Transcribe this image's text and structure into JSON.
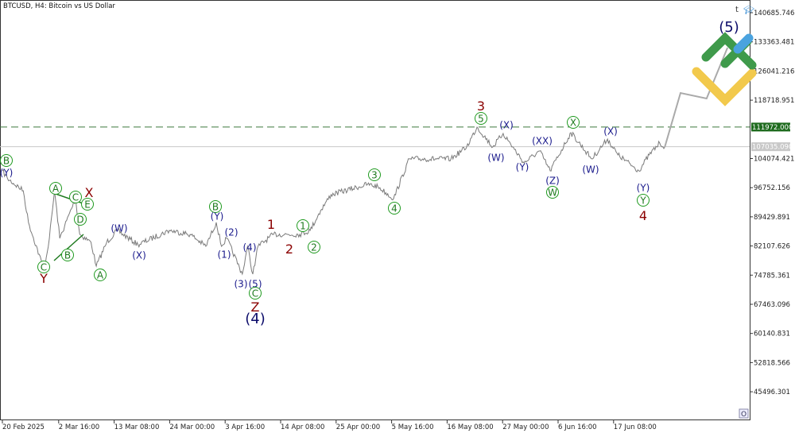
{
  "header": {
    "title": "BTCUSD, H4:  Bitcoin vs US Dollar"
  },
  "colors": {
    "price_line": "#7a7a7a",
    "projection": "#aaaaaa",
    "level_dashed": "#3c7a3c",
    "level_tag_bg": "#1e6b1e",
    "current_tag_bg": "#c8c8c8",
    "wave_navy": "#1a1a8c",
    "wave_red": "#8b0000",
    "wave_green": "#1f7a1f"
  },
  "toolbar": {
    "t_label": "t",
    "hat_icon": "graduation-cap-icon",
    "o_button": "O"
  },
  "chart_data": {
    "type": "line",
    "title": "BTCUSD, H4:  Bitcoin vs US Dollar",
    "grid": false,
    "ylim": [
      41000,
      142000
    ],
    "y_ticks": [
      "140685.746",
      "133363.481",
      "126041.216",
      "118718.951",
      "111972.000",
      "107035.090",
      "104074.421",
      "96752.156",
      "89429.891",
      "82107.626",
      "74785.361",
      "67463.096",
      "60140.831",
      "52818.566",
      "45496.301"
    ],
    "x_ticks": [
      "20 Feb 2025",
      "2 Mar 16:00",
      "13 Mar 08:00",
      "24 Mar 00:00",
      "3 Apr 16:00",
      "14 Apr 08:00",
      "25 Apr 00:00",
      "5 May 16:00",
      "16 May 08:00",
      "27 May 00:00",
      "6 Jun 16:00",
      "17 Jun 08:00"
    ],
    "series": [
      {
        "points": [
          [
            "2025-02-20",
            100981
          ],
          [
            "2025-02-21",
            98986
          ],
          [
            "2025-02-24",
            95994
          ],
          [
            "2025-02-25",
            88013
          ],
          [
            "2025-02-28",
            76042
          ],
          [
            "2025-03-01",
            84022
          ],
          [
            "2025-03-02",
            95994
          ],
          [
            "2025-03-03",
            84022
          ],
          [
            "2025-03-06",
            93998
          ],
          [
            "2025-03-06 20:00",
            85020
          ],
          [
            "2025-03-09",
            83025
          ],
          [
            "2025-03-10",
            77039
          ],
          [
            "2025-03-12",
            83025
          ],
          [
            "2025-03-14",
            86018
          ],
          [
            "2025-03-18",
            82426
          ],
          [
            "2025-03-24",
            86018
          ],
          [
            "2025-03-28",
            85020
          ],
          [
            "2025-03-31",
            82027
          ],
          [
            "2025-04-02",
            88013
          ],
          [
            "2025-04-03",
            82027
          ],
          [
            "2025-04-04",
            84022
          ],
          [
            "2025-04-07",
            75044
          ],
          [
            "2025-04-08",
            82027
          ],
          [
            "2025-04-09",
            75044
          ],
          [
            "2025-04-10",
            82027
          ],
          [
            "2025-04-13",
            85020
          ],
          [
            "2025-04-18",
            85020
          ],
          [
            "2025-04-20",
            86018
          ],
          [
            "2025-04-22",
            91006
          ],
          [
            "2025-04-24",
            94996
          ],
          [
            "2025-05-01",
            97590
          ],
          [
            "2025-05-03",
            97000
          ],
          [
            "2025-05-06",
            93998
          ],
          [
            "2025-05-09",
            103974
          ],
          [
            "2025-05-17",
            103974
          ],
          [
            "2025-05-20",
            106967
          ],
          [
            "2025-05-22",
            111955
          ],
          [
            "2025-05-25",
            106967
          ],
          [
            "2025-05-27",
            110359
          ],
          [
            "2025-05-31",
            102977
          ],
          [
            "2025-06-03",
            105970
          ],
          [
            "2025-06-05",
            100981
          ],
          [
            "2025-06-09",
            110558
          ],
          [
            "2025-06-13",
            103974
          ],
          [
            "2025-06-16",
            108962
          ],
          [
            "2025-06-18",
            104972
          ],
          [
            "2025-06-22",
            100981
          ],
          [
            "2025-06-24",
            104972
          ],
          [
            "2025-06-26",
            107965
          ],
          [
            "2025-06-27",
            107035
          ]
        ]
      },
      {
        "points": [
          [
            "2025-06-27",
            107035
          ],
          [
            "2025-06-30",
            120534
          ],
          [
            "2025-07-05",
            119138
          ],
          [
            "2025-07-09",
            131907
          ]
        ]
      }
    ],
    "levels": {
      "dashed": 111972.0,
      "current": 107035.09
    }
  },
  "waves": [
    {
      "t": "B",
      "c": "grn",
      "circ": true
    },
    {
      "t": "(Y)",
      "c": "navy"
    },
    {
      "t": "A",
      "c": "grn",
      "circ": true
    },
    {
      "t": "C",
      "c": "grn",
      "circ": true
    },
    {
      "t": "X",
      "c": "red"
    },
    {
      "t": "E",
      "c": "grn",
      "circ": true
    },
    {
      "t": "D",
      "c": "grn",
      "circ": true
    },
    {
      "t": "B",
      "c": "grn",
      "circ": true
    },
    {
      "t": "C",
      "c": "grn",
      "circ": true
    },
    {
      "t": "Y",
      "c": "red"
    },
    {
      "t": "A",
      "c": "grn",
      "circ": true
    },
    {
      "t": "(W)",
      "c": "navy"
    },
    {
      "t": "(X)",
      "c": "navy"
    },
    {
      "t": "B",
      "c": "grn",
      "circ": true
    },
    {
      "t": "(Y)",
      "c": "navy"
    },
    {
      "t": "(2)",
      "c": "navy"
    },
    {
      "t": "(1)",
      "c": "navy"
    },
    {
      "t": "(4)",
      "c": "navy"
    },
    {
      "t": "(3)",
      "c": "navy"
    },
    {
      "t": "(5)",
      "c": "navy"
    },
    {
      "t": "C",
      "c": "grn",
      "circ": true
    },
    {
      "t": "Z",
      "c": "red"
    },
    {
      "t": "(4)",
      "c": "big"
    },
    {
      "t": "1",
      "c": "red"
    },
    {
      "t": "2",
      "c": "red"
    },
    {
      "t": "1",
      "c": "grn",
      "circ": true
    },
    {
      "t": "2",
      "c": "grn",
      "circ": true
    },
    {
      "t": "3",
      "c": "grn",
      "circ": true
    },
    {
      "t": "4",
      "c": "grn",
      "circ": true
    },
    {
      "t": "3",
      "c": "red"
    },
    {
      "t": "5",
      "c": "grn",
      "circ": true
    },
    {
      "t": "(X)",
      "c": "navy"
    },
    {
      "t": "(W)",
      "c": "navy"
    },
    {
      "t": "(Y)",
      "c": "navy"
    },
    {
      "t": "(XX)",
      "c": "navy"
    },
    {
      "t": "(Z)",
      "c": "navy"
    },
    {
      "t": "W",
      "c": "grn",
      "circ": true
    },
    {
      "t": "X",
      "c": "grn",
      "circ": true
    },
    {
      "t": "(W)",
      "c": "navy"
    },
    {
      "t": "(X)",
      "c": "navy"
    },
    {
      "t": "(Y)",
      "c": "navy"
    },
    {
      "t": "Y",
      "c": "grn",
      "circ": true
    },
    {
      "t": "4",
      "c": "red"
    },
    {
      "t": "(5)",
      "c": "big"
    }
  ]
}
